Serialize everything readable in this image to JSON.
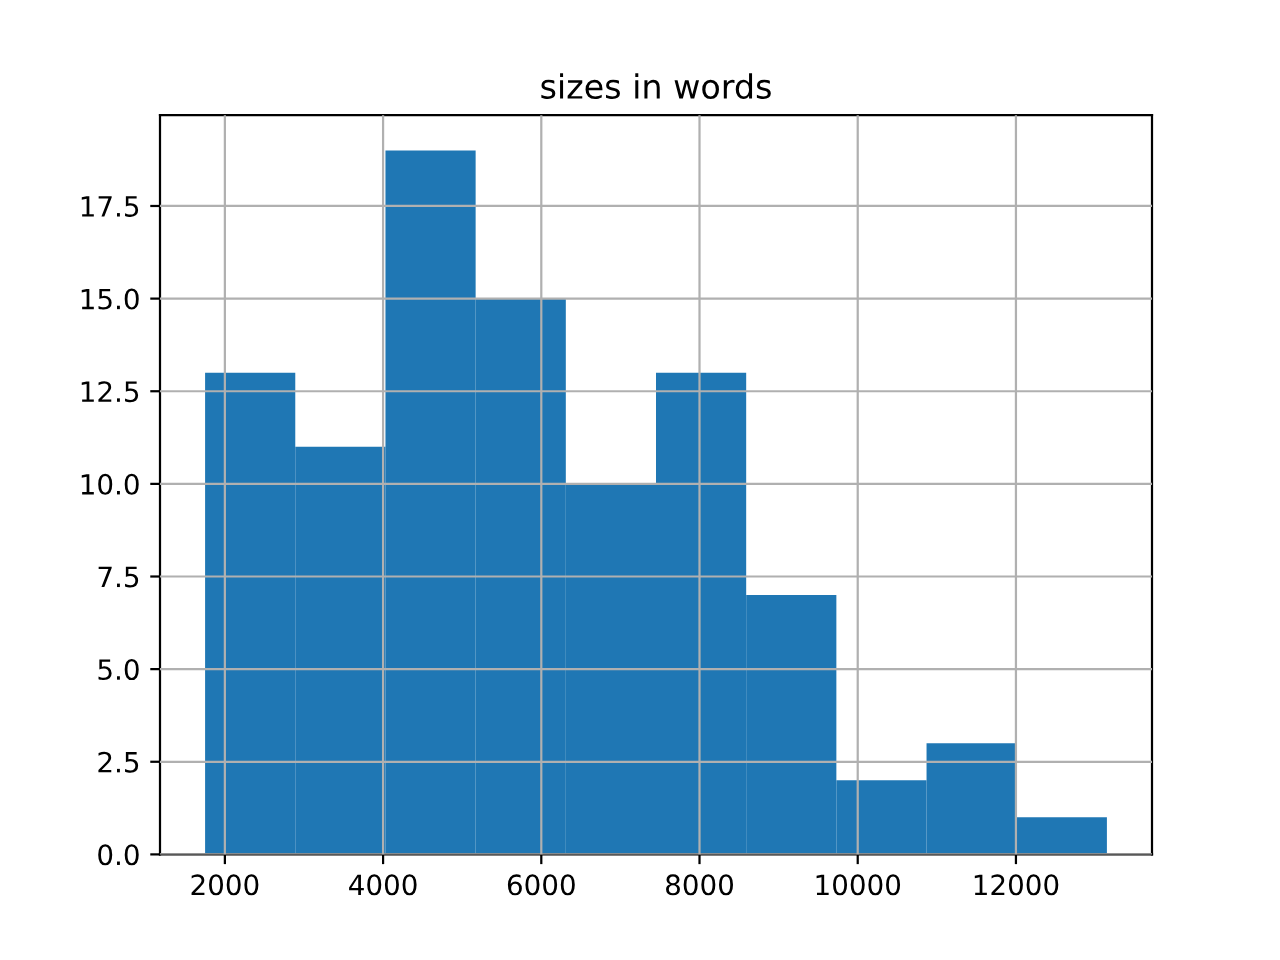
{
  "chart_data": {
    "type": "histogram",
    "title": "sizes in words",
    "bins": [
      1750,
      2890,
      4030,
      5170,
      6310,
      7450,
      8590,
      9730,
      10870,
      12010,
      13150
    ],
    "values": [
      13,
      11,
      19,
      15,
      10,
      13,
      7,
      2,
      3,
      1
    ],
    "color": "#1f77b4",
    "xlim": [
      1180,
      13720
    ],
    "xticks": [
      2000,
      4000,
      6000,
      8000,
      10000,
      12000
    ],
    "ylim": [
      0,
      19.95
    ],
    "yticks": [
      {
        "value": 0,
        "label": "0.0"
      },
      {
        "value": 2.5,
        "label": "2.5"
      },
      {
        "value": 5,
        "label": "5.0"
      },
      {
        "value": 7.5,
        "label": "7.5"
      },
      {
        "value": 10,
        "label": "10.0"
      },
      {
        "value": 12.5,
        "label": "12.5"
      },
      {
        "value": 15,
        "label": "15.0"
      },
      {
        "value": 17.5,
        "label": "17.5"
      }
    ],
    "grid": true
  }
}
